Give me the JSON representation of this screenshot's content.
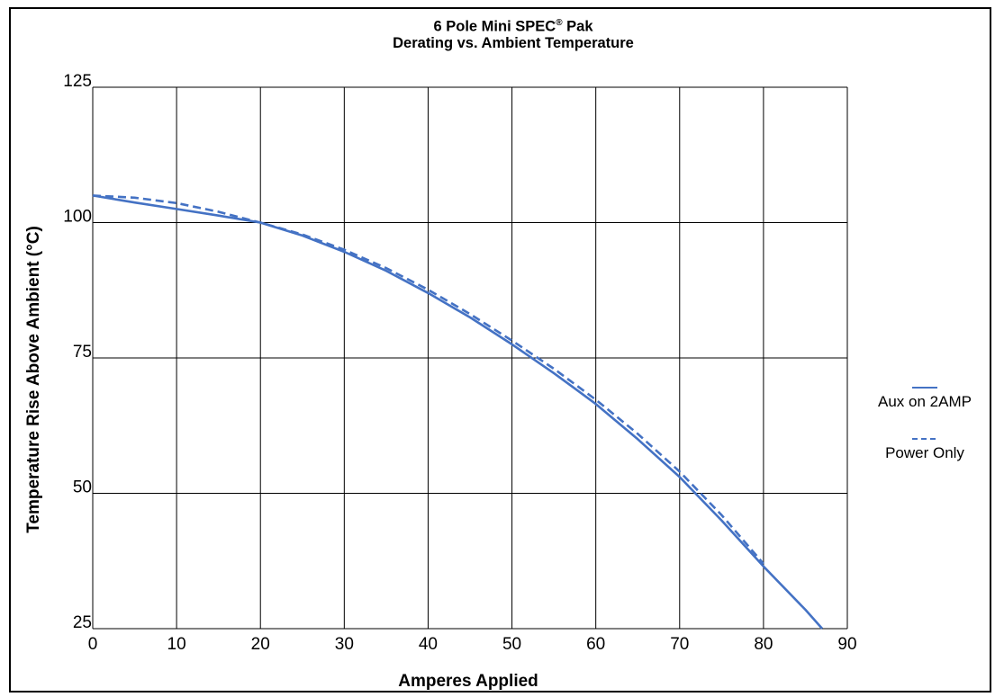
{
  "chart_data": {
    "type": "line",
    "title_line1": "6 Pole Mini SPEC",
    "title_reg": "®",
    "title_line1_suffix": " Pak",
    "title_line2": "Derating vs. Ambient Temperature",
    "xlabel": "Amperes Applied",
    "ylabel": "Temperature Rise Above Ambient (°C)",
    "xlim": [
      0,
      90
    ],
    "ylim": [
      25,
      125
    ],
    "x_ticks": [
      "0",
      "10",
      "20",
      "30",
      "40",
      "50",
      "60",
      "70",
      "80",
      "90"
    ],
    "y_ticks": [
      "25",
      "50",
      "75",
      "100",
      "125"
    ],
    "grid": true,
    "legend_position": "right",
    "line_color": "#4472c4",
    "series": [
      {
        "name": "Aux on 2AMP",
        "style": "solid",
        "x": [
          0,
          5,
          10,
          15,
          20,
          25,
          30,
          35,
          40,
          45,
          50,
          55,
          60,
          65,
          70,
          75,
          80,
          85,
          87
        ],
        "y": [
          105,
          103.7,
          102.5,
          101.3,
          100,
          97.6,
          94.6,
          91.1,
          87,
          82.5,
          77.5,
          72.2,
          66.5,
          60,
          53,
          45,
          36.5,
          28.5,
          25
        ]
      },
      {
        "name": "Power Only",
        "style": "dashed",
        "x": [
          0,
          5,
          10,
          15,
          20,
          25,
          30,
          35,
          40,
          45,
          50,
          55,
          60,
          65,
          70,
          75,
          80
        ],
        "y": [
          105,
          104.6,
          103.6,
          102,
          100,
          97.8,
          95,
          91.6,
          87.6,
          83.1,
          78.2,
          73,
          67.3,
          61,
          54,
          46,
          37
        ]
      }
    ]
  }
}
